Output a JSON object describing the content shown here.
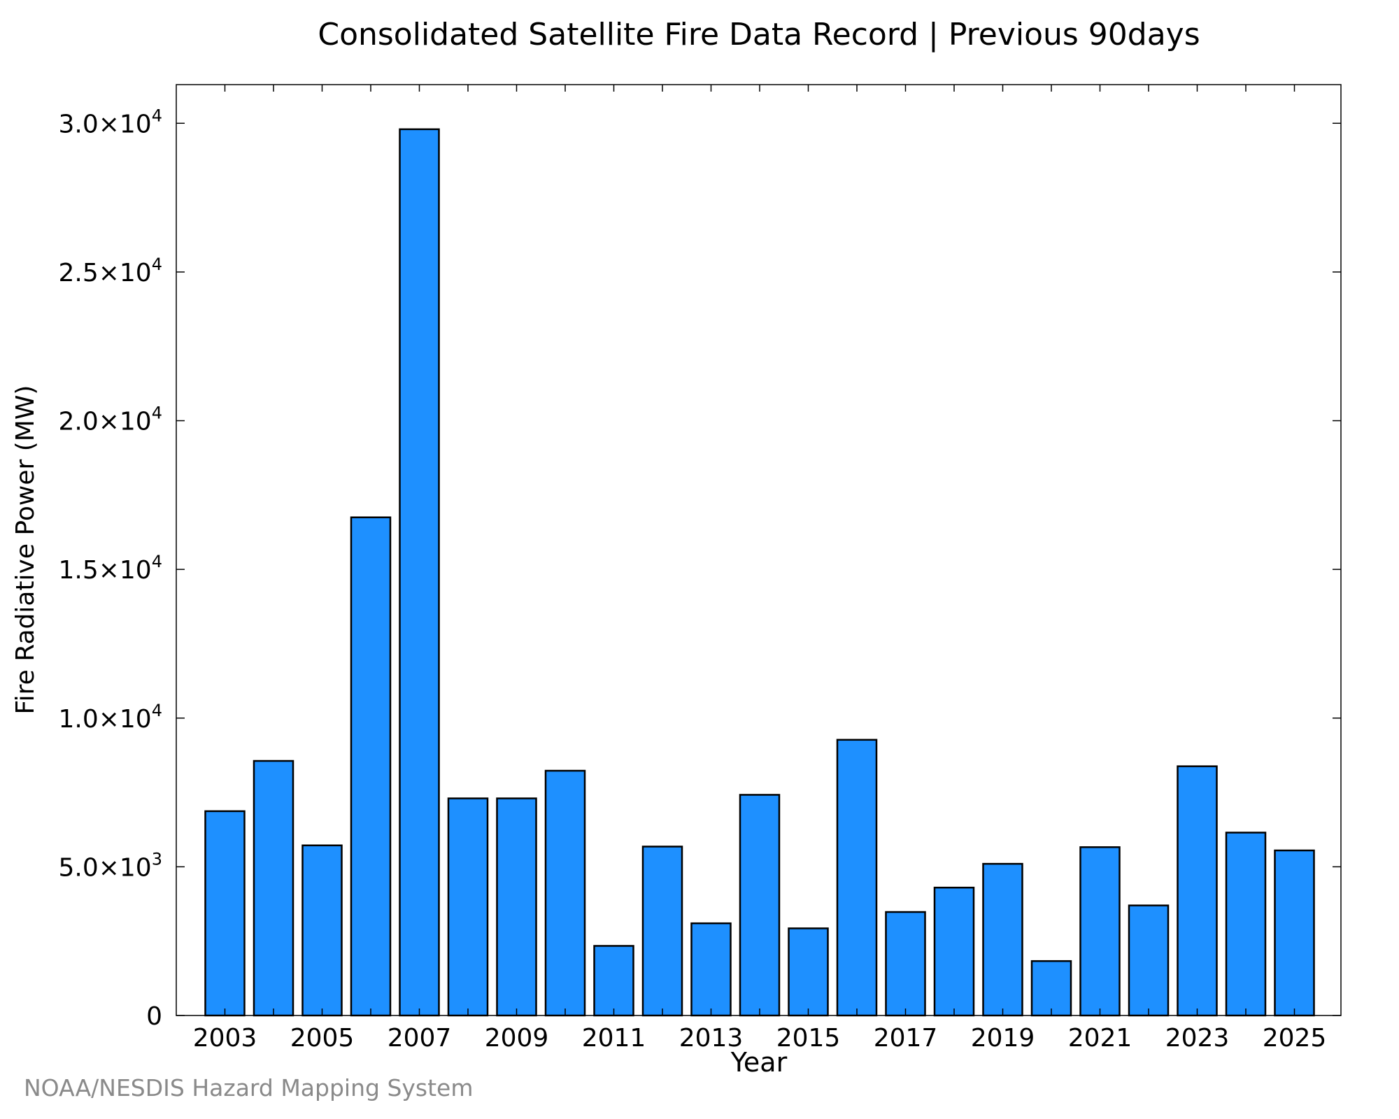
{
  "chart_data": {
    "type": "bar",
    "title": "Consolidated Satellite Fire Data Record | Previous 90days",
    "xlabel": "Year",
    "ylabel": "Fire Radiative Power (MW)",
    "categories": [
      "2003",
      "2004",
      "2005",
      "2006",
      "2007",
      "2008",
      "2009",
      "2010",
      "2011",
      "2012",
      "2013",
      "2014",
      "2015",
      "2016",
      "2017",
      "2018",
      "2019",
      "2020",
      "2021",
      "2022",
      "2023",
      "2024",
      "2025"
    ],
    "values": [
      6870,
      8560,
      5720,
      16750,
      29800,
      7300,
      7300,
      8230,
      2340,
      5680,
      3100,
      7420,
      2930,
      9270,
      3480,
      4300,
      5100,
      1830,
      5660,
      3700,
      8380,
      6150,
      5550
    ],
    "ylim": [
      0,
      31300
    ],
    "yticks": [
      {
        "value": 0,
        "mantissa": "0",
        "exponent": ""
      },
      {
        "value": 5000,
        "mantissa": "5.0×10",
        "exponent": "3"
      },
      {
        "value": 10000,
        "mantissa": "1.0×10",
        "exponent": "4"
      },
      {
        "value": 15000,
        "mantissa": "1.5×10",
        "exponent": "4"
      },
      {
        "value": 20000,
        "mantissa": "2.0×10",
        "exponent": "4"
      },
      {
        "value": 25000,
        "mantissa": "2.5×10",
        "exponent": "4"
      },
      {
        "value": 30000,
        "mantissa": "3.0×10",
        "exponent": "4"
      }
    ],
    "xtick_labels": [
      "2003",
      "2005",
      "2007",
      "2009",
      "2011",
      "2013",
      "2015",
      "2017",
      "2019",
      "2021",
      "2023",
      "2025"
    ],
    "bar_color": "#1e90ff",
    "bar_edge_color": "#000000",
    "grid": false,
    "legend": "none"
  },
  "credit": "NOAA/NESDIS Hazard Mapping System"
}
